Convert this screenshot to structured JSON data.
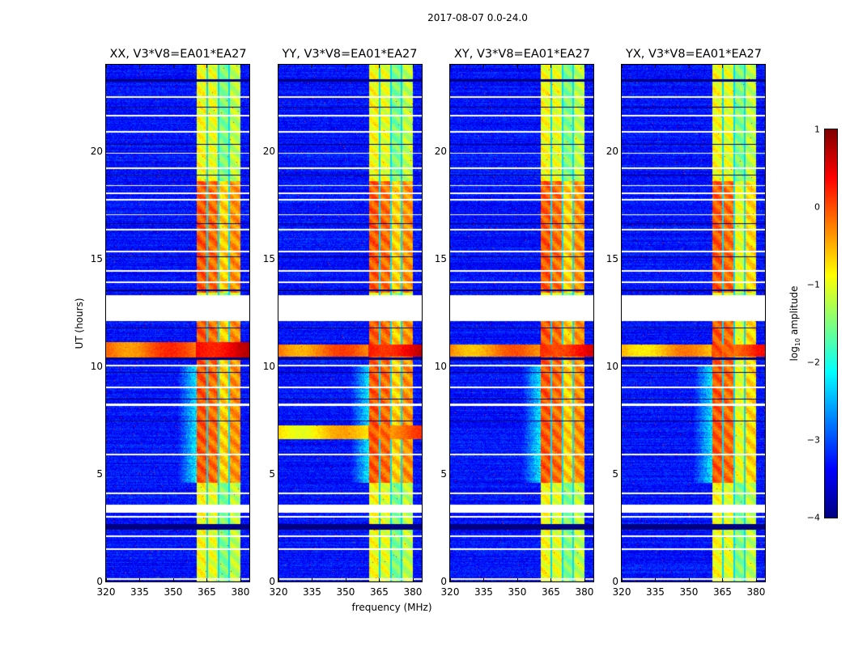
{
  "chart_data": {
    "type": "heatmap",
    "title": "2017-08-07 0.0-24.0",
    "xlabel": "frequency (MHz)",
    "ylabel": "UT (hours)",
    "xlim": [
      320,
      384
    ],
    "ylim": [
      0,
      24
    ],
    "xticks": [
      "320",
      "335",
      "350",
      "365",
      "380"
    ],
    "xtick_values": [
      320,
      335,
      350,
      365,
      380
    ],
    "yticks": [
      "0",
      "5",
      "10",
      "15",
      "20"
    ],
    "ytick_values": [
      0,
      5,
      10,
      15,
      20
    ],
    "colorbar": {
      "label": "log",
      "label_sub": "10",
      "label_rest": " amplitude",
      "range": [
        -4,
        1
      ],
      "ticks": [
        "1",
        "0",
        "−1",
        "−2",
        "−3",
        "−4"
      ],
      "tick_values": [
        1,
        0,
        -1,
        -2,
        -3,
        -4
      ],
      "colormap": "jet"
    },
    "panels": [
      {
        "title": "XX, V3*V8=EA01*EA27",
        "rfi_rows": [
          [
            10.35,
            11.1,
            -0.1
          ]
        ]
      },
      {
        "title": "YY, V3*V8=EA01*EA27",
        "rfi_rows": [
          [
            10.45,
            11.0,
            -0.2
          ],
          [
            6.6,
            7.25,
            -0.7
          ]
        ]
      },
      {
        "title": "XY, V3*V8=EA01*EA27",
        "rfi_rows": [
          [
            10.45,
            11.0,
            -0.3
          ]
        ]
      },
      {
        "title": "YX, V3*V8=EA01*EA27",
        "rfi_rows": [
          [
            10.45,
            11.0,
            -0.5
          ]
        ]
      }
    ],
    "flagged_hours": [
      [
        12.1,
        13.3
      ],
      [
        3.2,
        3.55
      ],
      [
        0.08,
        0.15
      ],
      [
        1.45,
        1.55
      ],
      [
        2.05,
        2.15
      ],
      [
        2.95,
        3.05
      ],
      [
        4.05,
        4.15
      ],
      [
        5.85,
        5.95
      ],
      [
        8.15,
        8.25
      ],
      [
        8.98,
        9.06
      ],
      [
        9.98,
        10.08
      ],
      [
        13.85,
        13.92
      ],
      [
        14.4,
        14.47
      ],
      [
        15.3,
        15.36
      ],
      [
        16.3,
        16.36
      ],
      [
        17.0,
        17.06
      ],
      [
        17.7,
        17.76
      ],
      [
        18.0,
        18.06
      ],
      [
        18.35,
        18.4
      ],
      [
        19.15,
        19.22
      ],
      [
        19.85,
        19.92
      ],
      [
        20.85,
        20.92
      ],
      [
        21.6,
        21.66
      ],
      [
        22.45,
        22.52
      ]
    ],
    "dropout_hours": [
      [
        2.4,
        2.65
      ],
      [
        10.3,
        10.42
      ],
      [
        23.2,
        23.33
      ],
      [
        20.28,
        20.33
      ],
      [
        18.85,
        18.9
      ],
      [
        16.6,
        16.64
      ],
      [
        15.05,
        15.1
      ],
      [
        13.5,
        13.55
      ],
      [
        9.7,
        9.74
      ],
      [
        7.45,
        7.49
      ],
      [
        8.45,
        8.49
      ],
      [
        11.75,
        11.79
      ],
      [
        22.0,
        22.03
      ]
    ],
    "band_mhz": [
      360.5,
      380
    ],
    "band_gaps_mhz": [
      365.3,
      370.1,
      375.0
    ],
    "active_hours": [
      [
        4.6,
        10.0
      ],
      [
        13.4,
        18.6
      ],
      [
        10.0,
        12.1
      ]
    ]
  }
}
